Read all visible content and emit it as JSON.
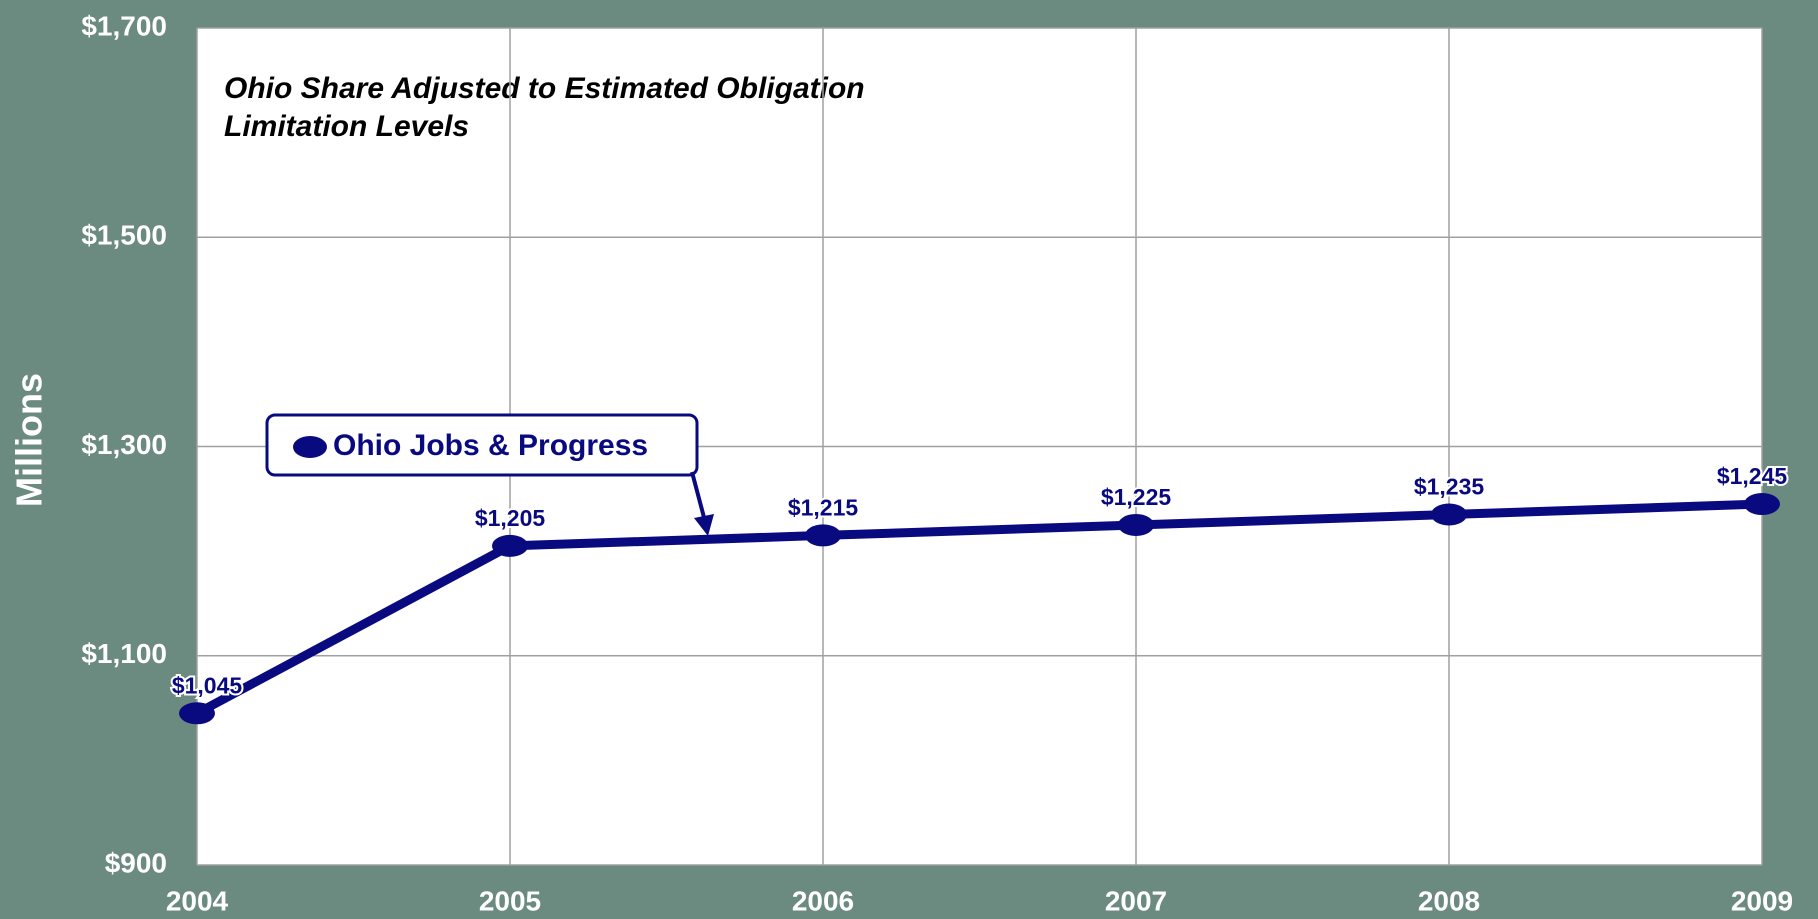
{
  "chart_data": {
    "type": "line",
    "annotation": [
      "Ohio Share Adjusted to Estimated Obligation",
      "Limitation Levels"
    ],
    "y_label": "Millions",
    "x": [
      2004,
      2005,
      2006,
      2007,
      2008,
      2009
    ],
    "series": [
      {
        "name": "Ohio Jobs & Progress",
        "color": "#0a0a80",
        "values": [
          1045,
          1205,
          1215,
          1225,
          1235,
          1245
        ],
        "value_labels": [
          "$1,045",
          "$1,205",
          "$1,215",
          "$1,225",
          "$1,235",
          "$1,245"
        ]
      }
    ],
    "xlim": [
      2004,
      2009
    ],
    "xticks": [
      2004,
      2005,
      2006,
      2007,
      2008,
      2009
    ],
    "ylim": [
      900,
      1700
    ],
    "yticks": [
      {
        "value": 900,
        "label": "$900"
      },
      {
        "value": 1100,
        "label": "$1,100"
      },
      {
        "value": 1300,
        "label": "$1,300"
      },
      {
        "value": 1500,
        "label": "$1,500"
      },
      {
        "value": 1700,
        "label": "$1,700"
      }
    ],
    "grid": true
  }
}
